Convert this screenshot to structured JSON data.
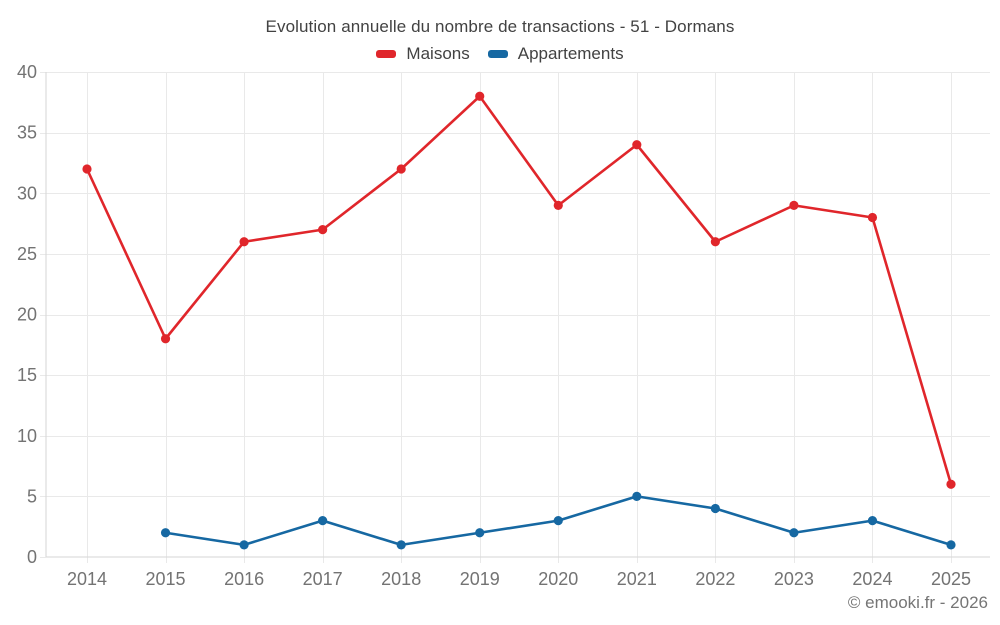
{
  "page": {
    "title": "Evolution annuelle du nombre de transactions - 51 - Dormans",
    "watermark": "© emooki.fr - 2026"
  },
  "legend": {
    "items": [
      {
        "label": "Maisons",
        "color": "#e0262b"
      },
      {
        "label": "Appartements",
        "color": "#1668a2"
      }
    ]
  },
  "chart_data": {
    "type": "line",
    "title": "Evolution annuelle du nombre de transactions - 51 - Dormans",
    "categories": [
      "2014",
      "2015",
      "2016",
      "2017",
      "2018",
      "2019",
      "2020",
      "2021",
      "2022",
      "2023",
      "2024",
      "2025"
    ],
    "series": [
      {
        "name": "Maisons",
        "color": "#e0262b",
        "values": [
          32,
          18,
          26,
          27,
          32,
          38,
          29,
          34,
          26,
          29,
          28,
          6
        ]
      },
      {
        "name": "Appartements",
        "color": "#1668a2",
        "values": [
          null,
          2,
          1,
          3,
          1,
          2,
          3,
          5,
          4,
          2,
          3,
          1
        ]
      }
    ],
    "xlabel": "",
    "ylabel": "",
    "ylim": [
      0,
      40
    ],
    "yticks": [
      0,
      5,
      10,
      15,
      20,
      25,
      30,
      35,
      40
    ],
    "grid": true,
    "legend_position": "top",
    "colors": {
      "grid": "#e9e9e9",
      "axis": "#d6d6d6",
      "tick_label": "#737373",
      "title": "#424242"
    }
  }
}
